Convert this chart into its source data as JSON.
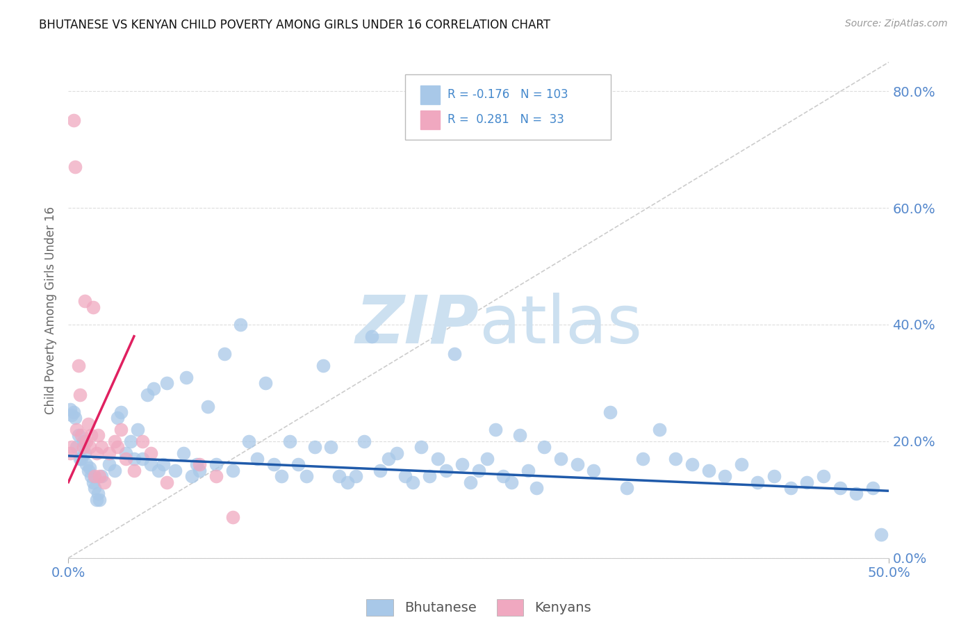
{
  "title": "BHUTANESE VS KENYAN CHILD POVERTY AMONG GIRLS UNDER 16 CORRELATION CHART",
  "source": "Source: ZipAtlas.com",
  "ylabel": "Child Poverty Among Girls Under 16",
  "ytick_labels": [
    "0.0%",
    "20.0%",
    "40.0%",
    "60.0%",
    "80.0%"
  ],
  "ytick_values": [
    0,
    20,
    40,
    60,
    80
  ],
  "xtick_labels": [
    "0.0%",
    "50.0%"
  ],
  "xtick_values": [
    0,
    50
  ],
  "xlim": [
    0,
    50
  ],
  "ylim": [
    0,
    85
  ],
  "blue_color": "#a8c8e8",
  "pink_color": "#f0a8c0",
  "line_blue": "#1f5aaa",
  "line_pink": "#e02060",
  "background": "#ffffff",
  "blue_scatter": [
    [
      0.1,
      25.5
    ],
    [
      0.2,
      24.5
    ],
    [
      0.3,
      25.0
    ],
    [
      0.4,
      24.0
    ],
    [
      0.5,
      19.0
    ],
    [
      0.6,
      21.0
    ],
    [
      0.7,
      17.0
    ],
    [
      0.8,
      17.0
    ],
    [
      0.9,
      20.0
    ],
    [
      1.0,
      18.0
    ],
    [
      1.1,
      16.0
    ],
    [
      1.2,
      15.0
    ],
    [
      1.3,
      15.5
    ],
    [
      1.4,
      14.0
    ],
    [
      1.5,
      13.0
    ],
    [
      1.6,
      12.0
    ],
    [
      1.7,
      10.0
    ],
    [
      1.8,
      11.0
    ],
    [
      1.9,
      10.0
    ],
    [
      2.0,
      14.0
    ],
    [
      2.5,
      16.0
    ],
    [
      2.8,
      15.0
    ],
    [
      3.0,
      24.0
    ],
    [
      3.2,
      25.0
    ],
    [
      3.5,
      18.0
    ],
    [
      3.8,
      20.0
    ],
    [
      4.0,
      17.0
    ],
    [
      4.2,
      22.0
    ],
    [
      4.5,
      17.0
    ],
    [
      4.8,
      28.0
    ],
    [
      5.0,
      16.0
    ],
    [
      5.2,
      29.0
    ],
    [
      5.5,
      15.0
    ],
    [
      5.8,
      16.0
    ],
    [
      6.0,
      30.0
    ],
    [
      6.5,
      15.0
    ],
    [
      7.0,
      18.0
    ],
    [
      7.2,
      31.0
    ],
    [
      7.5,
      14.0
    ],
    [
      7.8,
      16.0
    ],
    [
      8.0,
      15.0
    ],
    [
      8.5,
      26.0
    ],
    [
      9.0,
      16.0
    ],
    [
      9.5,
      35.0
    ],
    [
      10.0,
      15.0
    ],
    [
      10.5,
      40.0
    ],
    [
      11.0,
      20.0
    ],
    [
      11.5,
      17.0
    ],
    [
      12.0,
      30.0
    ],
    [
      12.5,
      16.0
    ],
    [
      13.0,
      14.0
    ],
    [
      13.5,
      20.0
    ],
    [
      14.0,
      16.0
    ],
    [
      14.5,
      14.0
    ],
    [
      15.0,
      19.0
    ],
    [
      15.5,
      33.0
    ],
    [
      16.0,
      19.0
    ],
    [
      16.5,
      14.0
    ],
    [
      17.0,
      13.0
    ],
    [
      17.5,
      14.0
    ],
    [
      18.0,
      20.0
    ],
    [
      18.5,
      38.0
    ],
    [
      19.0,
      15.0
    ],
    [
      19.5,
      17.0
    ],
    [
      20.0,
      18.0
    ],
    [
      20.5,
      14.0
    ],
    [
      21.0,
      13.0
    ],
    [
      21.5,
      19.0
    ],
    [
      22.0,
      14.0
    ],
    [
      22.5,
      17.0
    ],
    [
      23.0,
      15.0
    ],
    [
      23.5,
      35.0
    ],
    [
      24.0,
      16.0
    ],
    [
      24.5,
      13.0
    ],
    [
      25.0,
      15.0
    ],
    [
      25.5,
      17.0
    ],
    [
      26.0,
      22.0
    ],
    [
      26.5,
      14.0
    ],
    [
      27.0,
      13.0
    ],
    [
      27.5,
      21.0
    ],
    [
      28.0,
      15.0
    ],
    [
      28.5,
      12.0
    ],
    [
      29.0,
      19.0
    ],
    [
      30.0,
      17.0
    ],
    [
      31.0,
      16.0
    ],
    [
      32.0,
      15.0
    ],
    [
      33.0,
      25.0
    ],
    [
      34.0,
      12.0
    ],
    [
      35.0,
      17.0
    ],
    [
      36.0,
      22.0
    ],
    [
      37.0,
      17.0
    ],
    [
      38.0,
      16.0
    ],
    [
      39.0,
      15.0
    ],
    [
      40.0,
      14.0
    ],
    [
      41.0,
      16.0
    ],
    [
      42.0,
      13.0
    ],
    [
      43.0,
      14.0
    ],
    [
      44.0,
      12.0
    ],
    [
      45.0,
      13.0
    ],
    [
      46.0,
      14.0
    ],
    [
      47.0,
      12.0
    ],
    [
      48.0,
      11.0
    ],
    [
      49.0,
      12.0
    ],
    [
      49.5,
      4.0
    ]
  ],
  "pink_scatter": [
    [
      0.1,
      18.0
    ],
    [
      0.2,
      19.0
    ],
    [
      0.3,
      75.0
    ],
    [
      0.4,
      67.0
    ],
    [
      0.5,
      22.0
    ],
    [
      0.6,
      33.0
    ],
    [
      0.7,
      28.0
    ],
    [
      0.8,
      21.0
    ],
    [
      0.9,
      19.0
    ],
    [
      1.0,
      44.0
    ],
    [
      1.1,
      20.0
    ],
    [
      1.2,
      23.0
    ],
    [
      1.3,
      19.0
    ],
    [
      1.4,
      21.0
    ],
    [
      1.5,
      43.0
    ],
    [
      1.6,
      14.0
    ],
    [
      1.7,
      18.0
    ],
    [
      1.8,
      21.0
    ],
    [
      1.9,
      14.0
    ],
    [
      2.0,
      19.0
    ],
    [
      2.2,
      13.0
    ],
    [
      2.5,
      18.0
    ],
    [
      2.8,
      20.0
    ],
    [
      3.0,
      19.0
    ],
    [
      3.2,
      22.0
    ],
    [
      3.5,
      17.0
    ],
    [
      4.0,
      15.0
    ],
    [
      4.5,
      20.0
    ],
    [
      5.0,
      18.0
    ],
    [
      6.0,
      13.0
    ],
    [
      8.0,
      16.0
    ],
    [
      9.0,
      14.0
    ],
    [
      10.0,
      7.0
    ]
  ],
  "blue_line_x": [
    0,
    50
  ],
  "blue_line_y": [
    17.5,
    11.5
  ],
  "pink_line_x": [
    0,
    4.0
  ],
  "pink_line_y": [
    13.0,
    38.0
  ],
  "diag_line_x": [
    0,
    50
  ],
  "diag_line_y": [
    0,
    85
  ]
}
